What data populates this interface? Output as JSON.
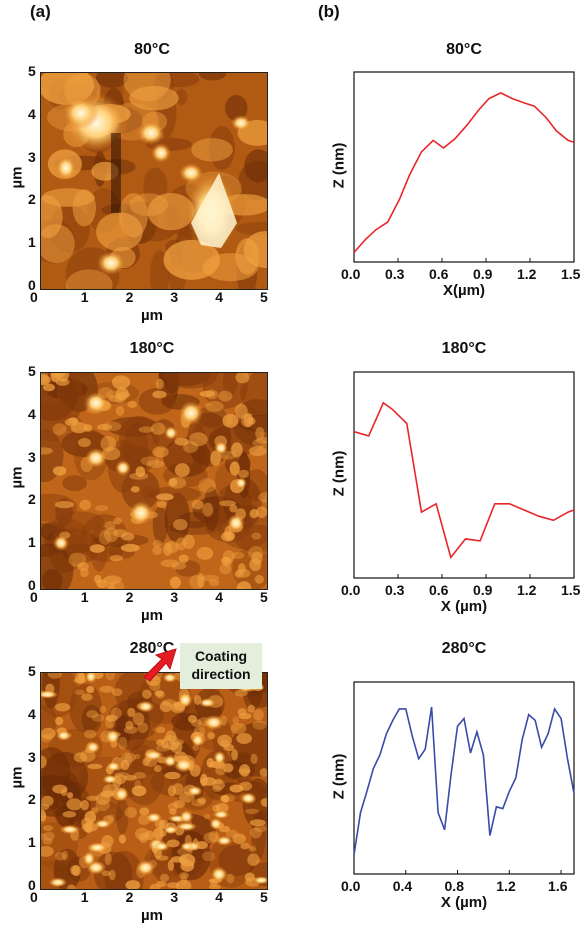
{
  "panels": {
    "a": "(a)",
    "b": "(b)"
  },
  "afm": {
    "axis_unit": "µm",
    "ticks": [
      "0",
      "1",
      "2",
      "3",
      "4",
      "5"
    ],
    "images": [
      {
        "title": "80°C"
      },
      {
        "title": "180°C"
      },
      {
        "title": "280°C"
      }
    ],
    "annotation": {
      "line1": "Coating",
      "line2": "direction"
    }
  },
  "chart_data": [
    {
      "type": "line",
      "title": "80°C",
      "xlabel": "X(µm)",
      "ylabel": "Z (nm)",
      "xlim": [
        0,
        1.5
      ],
      "x_ticks": [
        "0.0",
        "0.3",
        "0.6",
        "0.9",
        "1.2",
        "1.5"
      ],
      "series": [
        {
          "color": "#e8262a",
          "x": [
            0.0,
            0.08,
            0.15,
            0.23,
            0.31,
            0.38,
            0.46,
            0.54,
            0.61,
            0.69,
            0.77,
            0.85,
            0.92,
            1.0,
            1.08,
            1.15,
            1.23,
            1.31,
            1.38,
            1.46,
            1.5
          ],
          "y": [
            0.5,
            1.2,
            1.7,
            2.1,
            3.3,
            4.6,
            5.8,
            6.4,
            6.0,
            6.5,
            7.2,
            8.0,
            8.6,
            8.9,
            8.6,
            8.4,
            8.2,
            7.6,
            6.9,
            6.4,
            6.3
          ]
        }
      ]
    },
    {
      "type": "line",
      "title": "180°C",
      "xlabel": "X (µm)",
      "ylabel": "Z (nm)",
      "xlim": [
        0,
        1.5
      ],
      "x_ticks": [
        "0.0",
        "0.3",
        "0.6",
        "0.9",
        "1.2",
        "1.5"
      ],
      "series": [
        {
          "color": "#e8262a",
          "x": [
            0.0,
            0.1,
            0.2,
            0.26,
            0.36,
            0.46,
            0.56,
            0.66,
            0.76,
            0.86,
            0.96,
            1.06,
            1.16,
            1.26,
            1.36,
            1.46,
            1.5
          ],
          "y": [
            7.1,
            6.9,
            8.5,
            8.2,
            7.5,
            3.2,
            3.6,
            1.0,
            1.9,
            1.8,
            3.6,
            3.6,
            3.3,
            3.0,
            2.8,
            3.2,
            3.3
          ]
        }
      ]
    },
    {
      "type": "line",
      "title": "280°C",
      "xlabel": "X (µm)",
      "ylabel": "Z (nm)",
      "xlim": [
        0,
        1.7
      ],
      "x_ticks": [
        "0.0",
        "0.4",
        "0.8",
        "1.2",
        "1.6"
      ],
      "series": [
        {
          "color": "#3a4aa8",
          "x": [
            0.0,
            0.05,
            0.1,
            0.15,
            0.2,
            0.25,
            0.3,
            0.35,
            0.4,
            0.45,
            0.5,
            0.55,
            0.6,
            0.65,
            0.7,
            0.75,
            0.8,
            0.85,
            0.9,
            0.95,
            1.0,
            1.05,
            1.1,
            1.15,
            1.2,
            1.25,
            1.3,
            1.35,
            1.4,
            1.45,
            1.5,
            1.55,
            1.6,
            1.65,
            1.7
          ],
          "y": [
            1.0,
            3.2,
            4.3,
            5.5,
            6.2,
            7.3,
            8.0,
            8.6,
            8.6,
            7.2,
            6.0,
            6.5,
            8.7,
            3.2,
            2.3,
            5.2,
            7.7,
            8.1,
            6.3,
            7.4,
            6.2,
            2.0,
            3.5,
            3.4,
            4.3,
            5.0,
            7.0,
            8.3,
            8.0,
            6.6,
            7.3,
            8.6,
            8.1,
            6.0,
            4.2
          ]
        }
      ]
    }
  ]
}
